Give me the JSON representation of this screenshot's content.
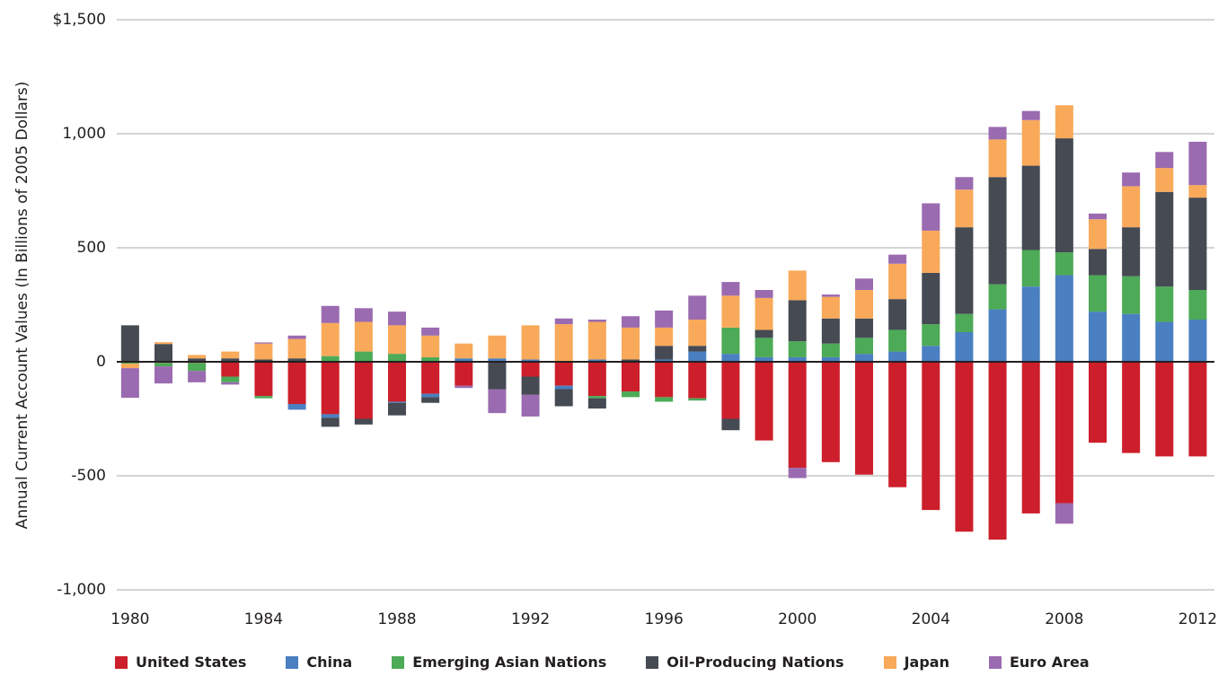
{
  "chart_data": {
    "type": "bar",
    "stacked": true,
    "y_label": "Annual Current Account Values (In Billions of 2005 Dollars)",
    "x": [
      1980,
      1981,
      1982,
      1983,
      1984,
      1985,
      1986,
      1987,
      1988,
      1989,
      1990,
      1991,
      1992,
      1993,
      1994,
      1995,
      1996,
      1997,
      1998,
      1999,
      2000,
      2001,
      2002,
      2003,
      2004,
      2005,
      2006,
      2007,
      2008,
      2009,
      2010,
      2011,
      2012
    ],
    "xlim": [
      1979.6,
      2012.5
    ],
    "xticks": [
      1980,
      1984,
      1988,
      1992,
      1996,
      2000,
      2004,
      2008,
      2012
    ],
    "ylim": [
      -1000,
      1500
    ],
    "yticks": [
      {
        "value": -1000,
        "label": "-1,000"
      },
      -500,
      0,
      500,
      {
        "value": 1000,
        "label": "1,000"
      },
      {
        "value": 1500,
        "label": "$1,500"
      }
    ],
    "grid": true,
    "legend": "bottom",
    "series": [
      {
        "name": "United States",
        "color": "#cc1f2b",
        "values": [
          0,
          -5,
          -5,
          -65,
          -150,
          -185,
          -230,
          -250,
          -175,
          -140,
          -105,
          0,
          -65,
          -105,
          -150,
          -130,
          -155,
          -160,
          -250,
          -345,
          -465,
          -440,
          -495,
          -550,
          -650,
          -745,
          -780,
          -665,
          -620,
          -355,
          -400,
          -415,
          -415
        ]
      },
      {
        "name": "China",
        "color": "#4a7fc1",
        "values": [
          0,
          0,
          0,
          0,
          0,
          -25,
          -15,
          0,
          -5,
          -15,
          15,
          15,
          10,
          -15,
          10,
          0,
          10,
          45,
          35,
          20,
          20,
          20,
          35,
          45,
          70,
          130,
          230,
          330,
          380,
          220,
          210,
          175,
          185
        ]
      },
      {
        "name": "Emerging Asian Nations",
        "color": "#4daa57",
        "values": [
          -8,
          -15,
          -35,
          -25,
          -10,
          0,
          25,
          45,
          35,
          20,
          0,
          0,
          0,
          0,
          -10,
          -25,
          -20,
          -10,
          115,
          85,
          70,
          60,
          70,
          95,
          95,
          80,
          110,
          160,
          100,
          160,
          165,
          155,
          130
        ]
      },
      {
        "name": "Oil-Producing Nations",
        "color": "#454a53",
        "values": [
          160,
          78,
          15,
          15,
          10,
          15,
          -40,
          -25,
          -55,
          -25,
          0,
          -120,
          -80,
          -75,
          -45,
          10,
          60,
          25,
          -50,
          35,
          180,
          110,
          85,
          135,
          225,
          380,
          470,
          370,
          500,
          115,
          215,
          415,
          405
        ]
      },
      {
        "name": "Japan",
        "color": "#f9a95a",
        "values": [
          -20,
          8,
          15,
          30,
          70,
          85,
          145,
          130,
          125,
          95,
          65,
          100,
          150,
          165,
          165,
          140,
          80,
          115,
          140,
          140,
          130,
          95,
          125,
          155,
          185,
          165,
          165,
          200,
          145,
          130,
          180,
          105,
          55
        ]
      },
      {
        "name": "Euro Area",
        "color": "#9a6bb0",
        "values": [
          -130,
          -75,
          -50,
          -10,
          5,
          15,
          75,
          60,
          60,
          35,
          -10,
          -105,
          -95,
          25,
          10,
          50,
          75,
          105,
          60,
          35,
          -45,
          10,
          50,
          40,
          120,
          55,
          55,
          40,
          -90,
          25,
          60,
          70,
          190
        ]
      }
    ]
  }
}
